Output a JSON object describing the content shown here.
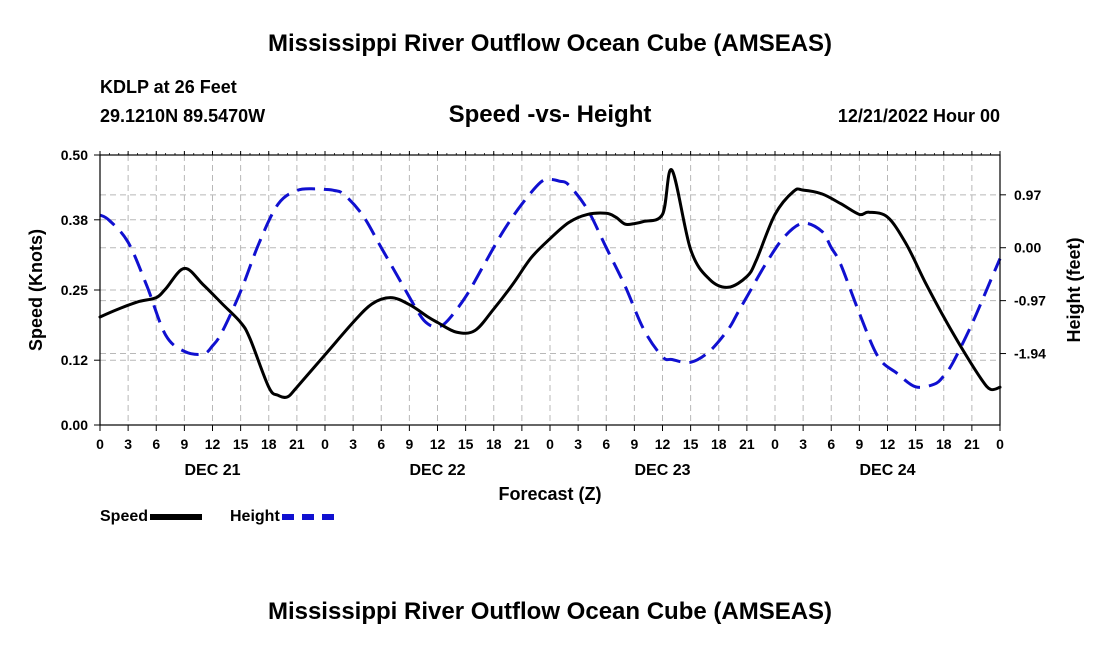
{
  "header": {
    "title": "Mississippi River Outflow Ocean Cube (AMSEAS)",
    "station": "KDLP at 26 Feet",
    "coords": "29.1210N  89.5470W",
    "subtitle": "Speed -vs- Height",
    "datetime": "12/21/2022 Hour 00"
  },
  "footer": {
    "title": "Mississippi River Outflow Ocean Cube (AMSEAS)"
  },
  "legend": {
    "speed_label": "Speed",
    "height_label": "Height"
  },
  "chart_data": {
    "type": "line",
    "title": "Speed -vs- Height",
    "xlabel": "Forecast (Z)",
    "ylabel": "Speed (Knots)",
    "y2label": "Height (feet)",
    "x_range": [
      0,
      96
    ],
    "ylim": [
      0,
      0.5
    ],
    "y2lim": [
      -3.25,
      1.7
    ],
    "x_tick_values": [
      0,
      3,
      6,
      9,
      12,
      15,
      18,
      21,
      24,
      27,
      30,
      33,
      36,
      39,
      42,
      45,
      48,
      51,
      54,
      57,
      60,
      63,
      66,
      69,
      72,
      75,
      78,
      81,
      84,
      87,
      90,
      93,
      96
    ],
    "x_tick_labels": [
      "0",
      "3",
      "6",
      "9",
      "12",
      "15",
      "18",
      "21",
      "0",
      "3",
      "6",
      "9",
      "12",
      "15",
      "18",
      "21",
      "0",
      "3",
      "6",
      "9",
      "12",
      "15",
      "18",
      "21",
      "0",
      "3",
      "6",
      "9",
      "12",
      "15",
      "18",
      "21",
      "0"
    ],
    "day_labels": [
      {
        "x": 12,
        "label": "DEC 21"
      },
      {
        "x": 36,
        "label": "DEC 22"
      },
      {
        "x": 60,
        "label": "DEC 23"
      },
      {
        "x": 84,
        "label": "DEC 24"
      }
    ],
    "y_ticks": [
      0.0,
      0.12,
      0.25,
      0.38,
      0.5
    ],
    "y_tick_labels": [
      "0.00",
      "0.12",
      "0.25",
      "0.38",
      "0.50"
    ],
    "y2_ticks": [
      0.97,
      0.0,
      -0.97,
      -1.94
    ],
    "y2_tick_labels": [
      "0.97",
      "0.00",
      "-0.97",
      "-1.94"
    ],
    "grid": true,
    "legend_position": "bottom-left",
    "series": [
      {
        "name": "Speed",
        "axis": "left",
        "color": "#000000",
        "dash": "solid",
        "x": [
          0,
          2,
          4,
          6,
          7,
          9,
          11,
          13,
          15,
          16,
          18,
          19,
          20,
          21,
          24,
          27,
          29,
          31,
          33,
          35,
          36,
          38,
          40,
          42,
          44,
          46,
          48,
          50,
          52,
          54,
          55,
          56,
          57,
          58,
          60,
          61,
          63,
          65,
          67,
          69,
          70,
          72,
          74,
          75,
          77,
          79,
          81,
          82,
          84,
          86,
          88,
          90,
          92,
          94,
          95,
          96
        ],
        "values": [
          0.2,
          0.215,
          0.228,
          0.236,
          0.252,
          0.29,
          0.26,
          0.225,
          0.19,
          0.16,
          0.07,
          0.055,
          0.052,
          0.07,
          0.13,
          0.19,
          0.224,
          0.236,
          0.223,
          0.2,
          0.19,
          0.172,
          0.175,
          0.215,
          0.26,
          0.31,
          0.345,
          0.375,
          0.39,
          0.392,
          0.385,
          0.372,
          0.373,
          0.377,
          0.39,
          0.472,
          0.325,
          0.27,
          0.255,
          0.275,
          0.305,
          0.39,
          0.433,
          0.435,
          0.428,
          0.41,
          0.39,
          0.394,
          0.385,
          0.335,
          0.265,
          0.2,
          0.14,
          0.085,
          0.066,
          0.07
        ]
      },
      {
        "name": "Height",
        "axis": "right",
        "color": "#1010d0",
        "dash": "dashed",
        "x": [
          0,
          1,
          3,
          5,
          7,
          9,
          11,
          12,
          13,
          15,
          17,
          19,
          21,
          23,
          24,
          25,
          26,
          28,
          30,
          32,
          34,
          35,
          36,
          37,
          39,
          41,
          43,
          45,
          47,
          48,
          49,
          50,
          52,
          54,
          56,
          58,
          60,
          61,
          63,
          65,
          67,
          68,
          69,
          71,
          73,
          75,
          77,
          78,
          79,
          81,
          83,
          85,
          87,
          89,
          90,
          91,
          93,
          95,
          96
        ],
        "values": [
          0.6,
          0.5,
          0.1,
          -0.7,
          -1.6,
          -1.9,
          -1.95,
          -1.8,
          -1.55,
          -0.8,
          0.1,
          0.8,
          1.05,
          1.08,
          1.07,
          1.05,
          0.98,
          0.6,
          0.0,
          -0.6,
          -1.2,
          -1.4,
          -1.45,
          -1.35,
          -0.9,
          -0.3,
          0.3,
          0.8,
          1.2,
          1.25,
          1.22,
          1.15,
          0.7,
          0.0,
          -0.7,
          -1.5,
          -2.0,
          -2.05,
          -2.1,
          -1.9,
          -1.5,
          -1.2,
          -0.9,
          -0.3,
          0.2,
          0.45,
          0.3,
          0.0,
          -0.3,
          -1.2,
          -2.0,
          -2.3,
          -2.55,
          -2.5,
          -2.35,
          -2.1,
          -1.4,
          -0.6,
          -0.2
        ]
      }
    ]
  }
}
